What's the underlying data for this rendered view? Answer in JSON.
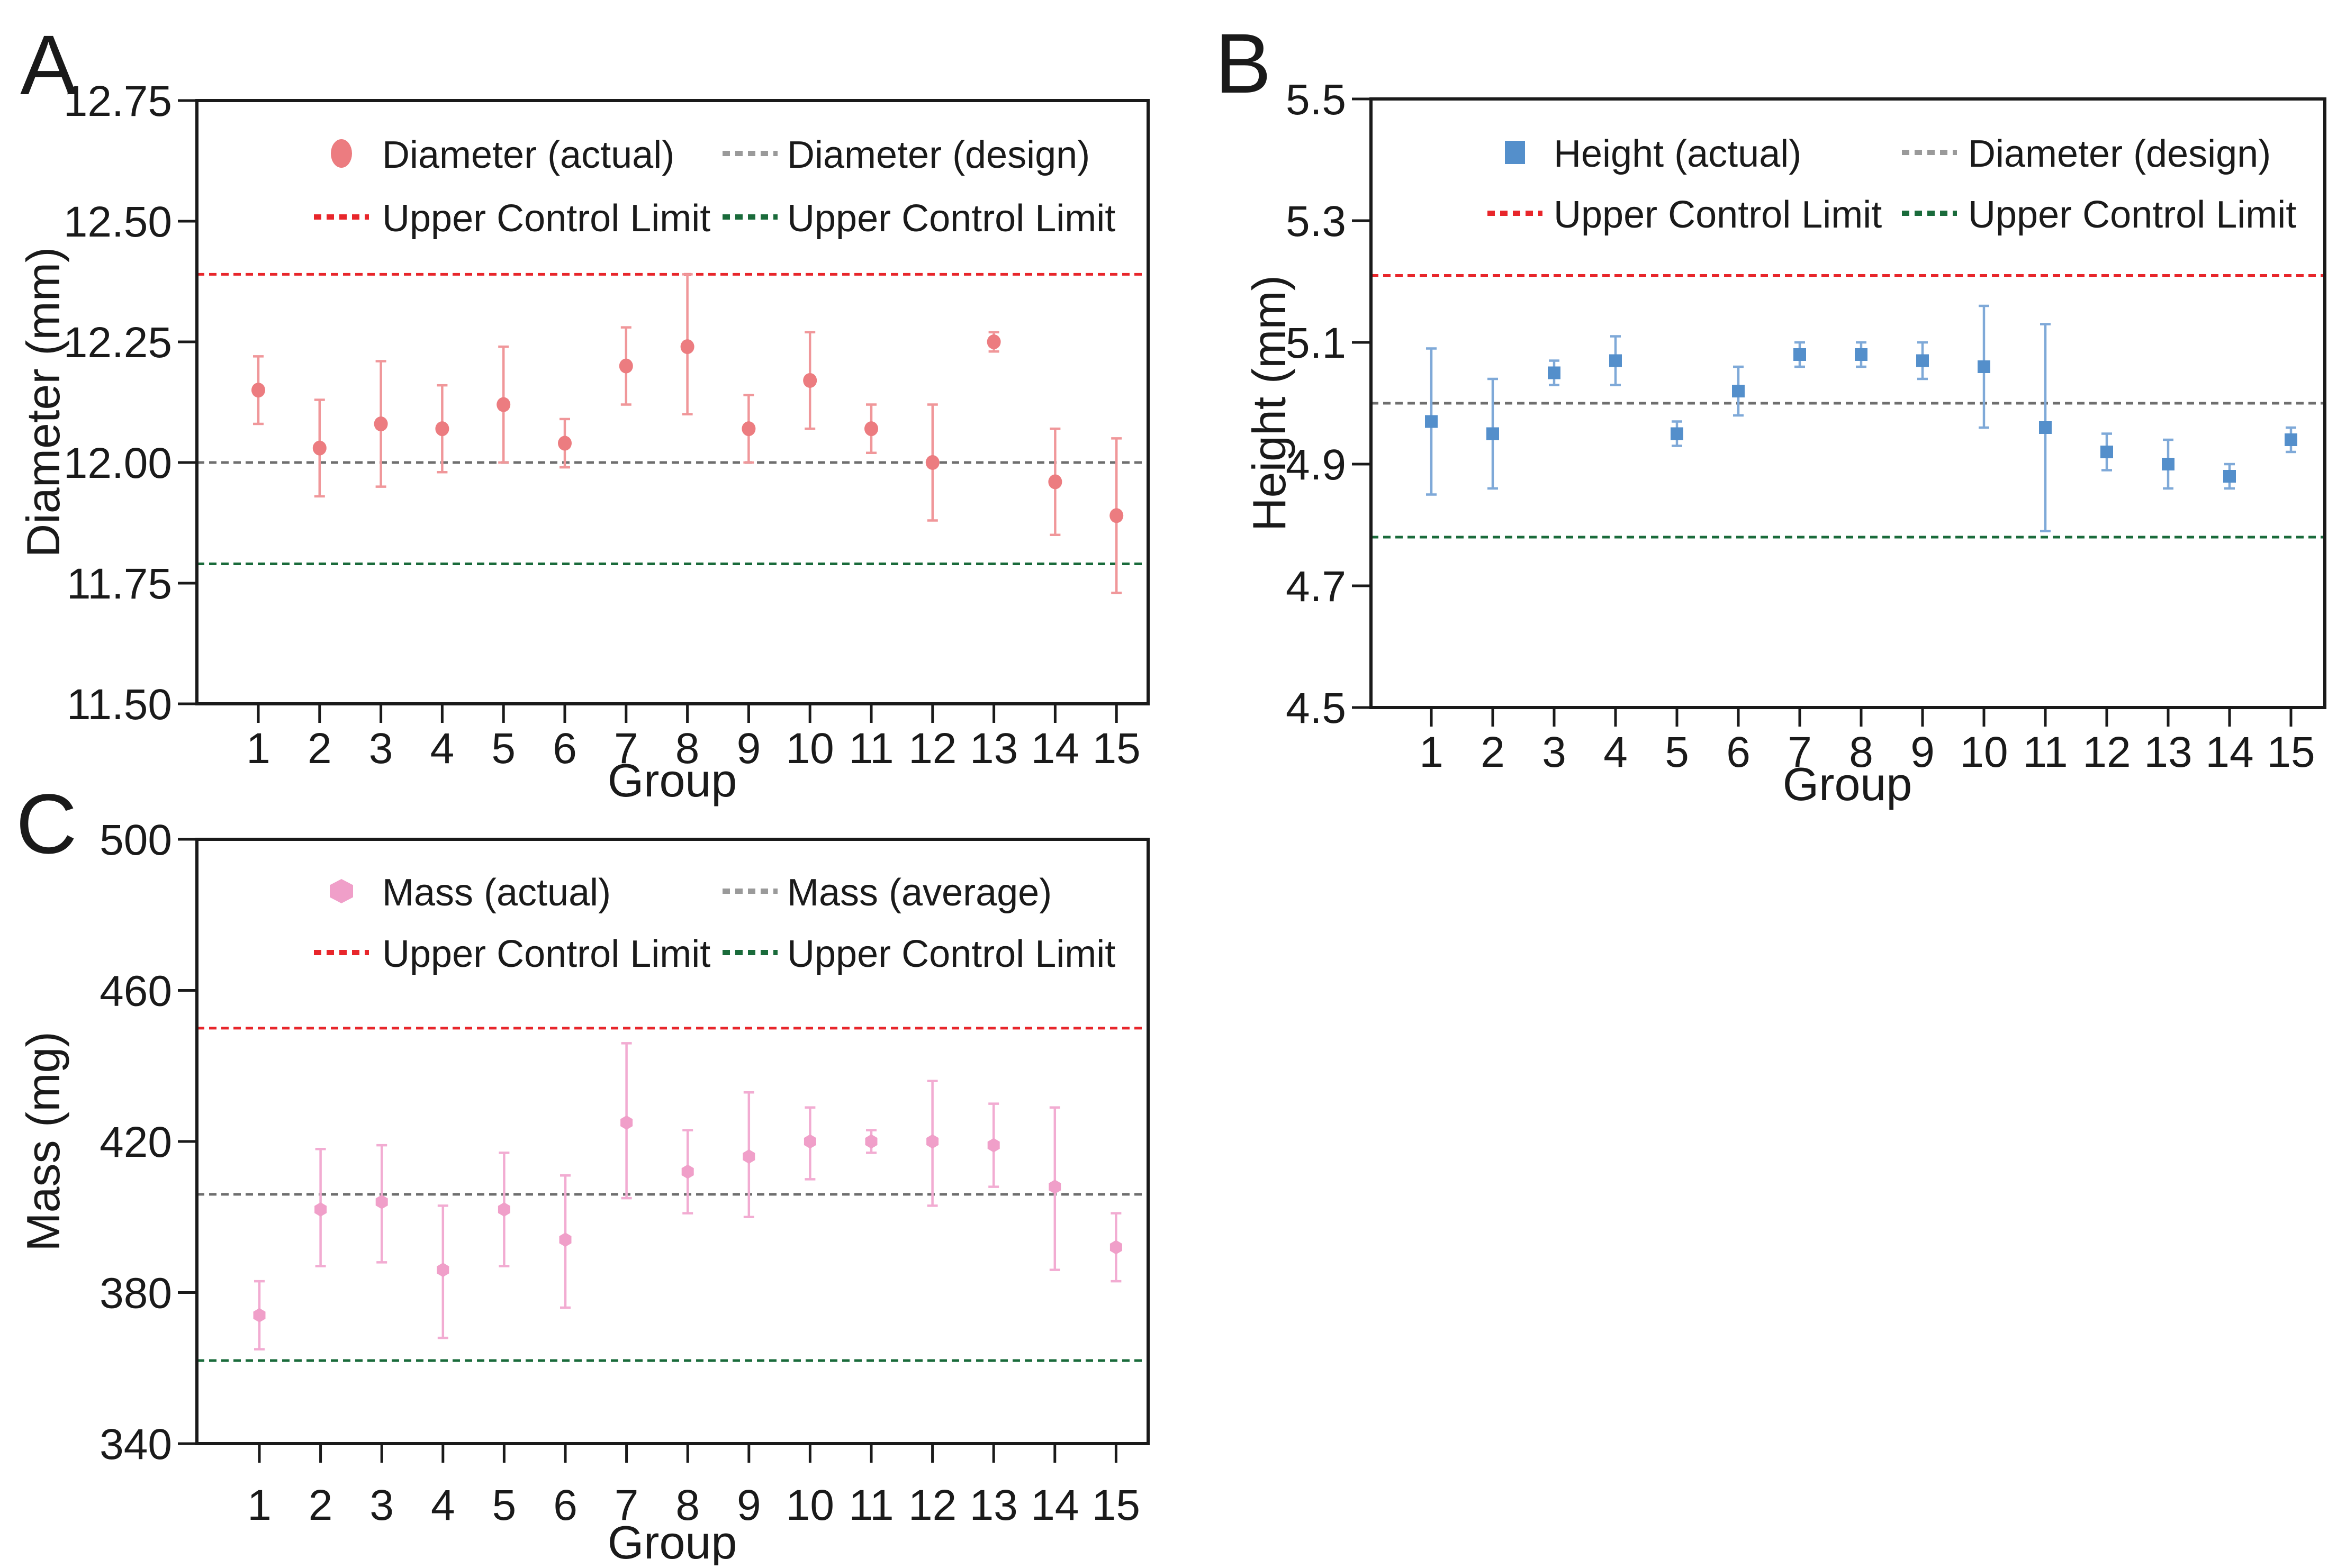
{
  "figure": {
    "background": "#ffffff",
    "axis_color": "#1a1a1a"
  },
  "chart_data": [
    {
      "type": "scatter",
      "panel_label": "A",
      "xlabel": "Group",
      "ylabel": "Diameter (mm)",
      "ylim": [
        11.5,
        12.75
      ],
      "yticks": [
        {
          "label": "12.75",
          "value": 12.75
        },
        {
          "label": "12.50",
          "value": 12.5
        },
        {
          "label": "12.25",
          "value": 12.25
        },
        {
          "label": "12.00",
          "value": 12.0
        },
        {
          "label": "11.75",
          "value": 11.75
        },
        {
          "label": "11.50",
          "value": 11.5
        }
      ],
      "xtick_labels": [
        "1",
        "2",
        "3",
        "4",
        "5",
        "6",
        "7",
        "8",
        "9",
        "10",
        "11",
        "12",
        "13",
        "14",
        "15"
      ],
      "series": {
        "name": "Diameter (actual)",
        "marker": "circle",
        "marker_color": "#EC7C80",
        "errorbar_color": "#F0979A",
        "x": [
          1,
          2,
          3,
          4,
          5,
          6,
          7,
          8,
          9,
          10,
          11,
          12,
          13,
          14,
          15
        ],
        "y": [
          12.15,
          12.03,
          12.08,
          12.07,
          12.12,
          12.04,
          12.2,
          12.24,
          12.07,
          12.17,
          12.07,
          12.0,
          12.25,
          11.96,
          11.89
        ],
        "err_up": [
          0.07,
          0.1,
          0.13,
          0.09,
          0.12,
          0.05,
          0.08,
          0.15,
          0.07,
          0.1,
          0.05,
          0.12,
          0.02,
          0.11,
          0.16
        ],
        "err_down": [
          0.07,
          0.1,
          0.13,
          0.09,
          0.12,
          0.05,
          0.08,
          0.14,
          0.07,
          0.1,
          0.05,
          0.12,
          0.02,
          0.11,
          0.16
        ]
      },
      "ref_lines": [
        {
          "label": "Diameter (design)",
          "value": 12.0,
          "color": "#6F6F6F"
        },
        {
          "label": "Upper Control Limit",
          "value": 12.39,
          "color": "#E8262B"
        },
        {
          "label": "Upper Control Limit",
          "value": 11.79,
          "color": "#1A6B3B"
        }
      ],
      "legend": [
        {
          "label": "Diameter (actual)",
          "glyph": "circle",
          "color": "#EC7C80"
        },
        {
          "label": "Diameter (design)",
          "glyph": "dash",
          "color": "#9A9A9A"
        },
        {
          "label": "Upper Control Limit",
          "glyph": "dash",
          "color": "#E8262B"
        },
        {
          "label": "Upper Control Limit",
          "glyph": "dash",
          "color": "#1A6B3B"
        }
      ]
    },
    {
      "type": "scatter",
      "panel_label": "B",
      "xlabel": "Group",
      "ylabel": "Height (mm)",
      "ylim": [
        4.5,
        5.5
      ],
      "yticks": [
        {
          "label": "5.5",
          "value": 5.5
        },
        {
          "label": "5.3",
          "value": 5.3
        },
        {
          "label": "5.1",
          "value": 5.1
        },
        {
          "label": "4.9",
          "value": 4.9
        },
        {
          "label": "4.7",
          "value": 4.7
        },
        {
          "label": "4.5",
          "value": 4.5
        }
      ],
      "xtick_labels": [
        "1",
        "2",
        "3",
        "4",
        "5",
        "6",
        "7",
        "8",
        "9",
        "10",
        "11",
        "12",
        "13",
        "14",
        "15"
      ],
      "series": {
        "name": "Height (actual)",
        "marker": "square",
        "marker_color": "#548FCB",
        "errorbar_color": "#7FA9D8",
        "x": [
          1,
          2,
          3,
          4,
          5,
          6,
          7,
          8,
          9,
          10,
          11,
          12,
          13,
          14,
          15
        ],
        "y": [
          4.97,
          4.95,
          5.05,
          5.07,
          4.95,
          5.02,
          5.08,
          5.08,
          5.07,
          5.06,
          4.96,
          4.92,
          4.9,
          4.88,
          4.94
        ],
        "err_up": [
          0.12,
          0.09,
          0.02,
          0.04,
          0.02,
          0.04,
          0.02,
          0.02,
          0.03,
          0.1,
          0.17,
          0.03,
          0.04,
          0.02,
          0.02
        ],
        "err_down": [
          0.12,
          0.09,
          0.02,
          0.04,
          0.02,
          0.04,
          0.02,
          0.02,
          0.03,
          0.1,
          0.17,
          0.03,
          0.04,
          0.02,
          0.02
        ]
      },
      "ref_lines": [
        {
          "label": "Diameter (design)",
          "value": 5.0,
          "color": "#6F6F6F"
        },
        {
          "label": "Upper Control Limit",
          "value": 5.21,
          "color": "#E8262B"
        },
        {
          "label": "Upper Control Limit",
          "value": 4.78,
          "color": "#1A6B3B"
        }
      ],
      "legend": [
        {
          "label": "Height (actual)",
          "glyph": "square",
          "color": "#548FCB"
        },
        {
          "label": "Diameter (design)",
          "glyph": "dash",
          "color": "#9A9A9A"
        },
        {
          "label": "Upper Control Limit",
          "glyph": "dash",
          "color": "#E8262B"
        },
        {
          "label": "Upper Control Limit",
          "glyph": "dash",
          "color": "#1A6B3B"
        }
      ]
    },
    {
      "type": "scatter",
      "panel_label": "C",
      "xlabel": "Group",
      "ylabel": "Mass (mg)",
      "ylim": [
        340,
        500
      ],
      "yticks": [
        {
          "label": "500",
          "value": 500
        },
        {
          "label": "460",
          "value": 460
        },
        {
          "label": "420",
          "value": 420
        },
        {
          "label": "380",
          "value": 380
        },
        {
          "label": "340",
          "value": 340
        }
      ],
      "xtick_labels": [
        "1",
        "2",
        "3",
        "4",
        "5",
        "6",
        "7",
        "8",
        "9",
        "10",
        "11",
        "12",
        "13",
        "14",
        "15"
      ],
      "series": {
        "name": "Mass (actual)",
        "marker": "hexagon",
        "marker_color": "#F09FC9",
        "errorbar_color": "#F2ACD2",
        "x": [
          1,
          2,
          3,
          4,
          5,
          6,
          7,
          8,
          9,
          10,
          11,
          12,
          13,
          14,
          15
        ],
        "y": [
          374,
          402,
          404,
          386,
          402,
          394,
          425,
          412,
          416,
          420,
          420,
          420,
          419,
          408,
          392
        ],
        "err_up": [
          9,
          16,
          15,
          17,
          15,
          17,
          21,
          11,
          17,
          9,
          3,
          16,
          11,
          21,
          9
        ],
        "err_down": [
          9,
          15,
          16,
          18,
          15,
          18,
          20,
          11,
          16,
          10,
          3,
          17,
          11,
          22,
          9
        ]
      },
      "ref_lines": [
        {
          "label": "Mass (average)",
          "value": 406,
          "color": "#6F6F6F"
        },
        {
          "label": "Upper Control Limit",
          "value": 450,
          "color": "#E8262B"
        },
        {
          "label": "Upper Control Limit",
          "value": 362,
          "color": "#1A6B3B"
        }
      ],
      "legend": [
        {
          "label": "Mass (actual)",
          "glyph": "hexagon",
          "color": "#F09FC9"
        },
        {
          "label": "Mass (average)",
          "glyph": "dash",
          "color": "#9A9A9A"
        },
        {
          "label": "Upper Control Limit",
          "glyph": "dash",
          "color": "#E8262B"
        },
        {
          "label": "Upper Control Limit",
          "glyph": "dash",
          "color": "#1A6B3B"
        }
      ]
    }
  ]
}
